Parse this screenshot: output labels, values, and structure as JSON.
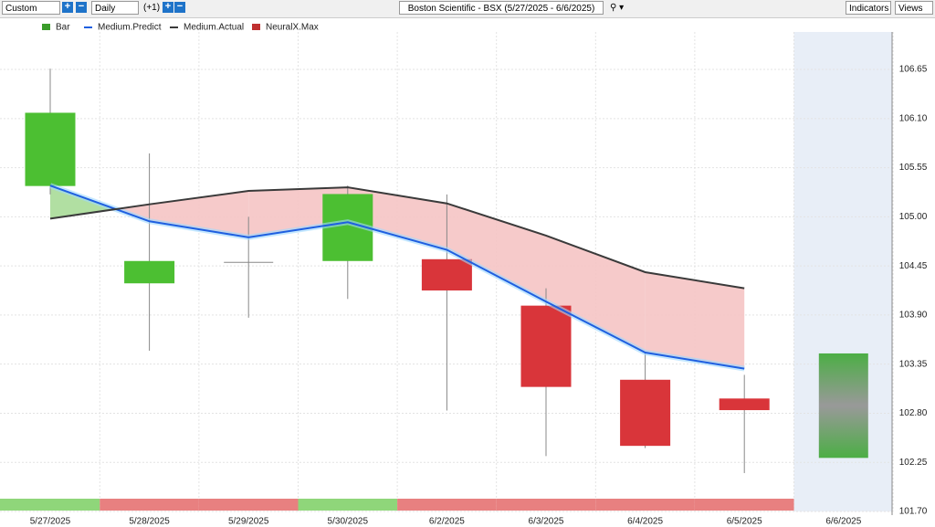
{
  "toolbar": {
    "range": "Custom",
    "interval": "Daily",
    "offset": "(+1)",
    "title": "Boston Scientific - BSX (5/27/2025 - 6/6/2025)",
    "indicators": "Indicators",
    "views": "Views"
  },
  "chart_data": {
    "type": "candlestick",
    "categories": [
      "5/27/2025",
      "5/28/2025",
      "5/29/2025",
      "5/30/2025",
      "6/2/2025",
      "6/3/2025",
      "6/4/2025",
      "6/5/2025",
      "6/6/2025"
    ],
    "open": [
      105.35,
      104.26,
      104.49,
      104.51,
      104.52,
      104.0,
      103.17,
      102.96,
      null
    ],
    "high": [
      106.66,
      105.71,
      105.0,
      105.35,
      105.25,
      104.2,
      103.49,
      103.23,
      null
    ],
    "low": [
      105.25,
      103.5,
      103.87,
      104.08,
      102.83,
      102.32,
      102.41,
      102.13,
      null
    ],
    "close": [
      106.16,
      104.5,
      104.49,
      105.25,
      104.18,
      103.1,
      102.44,
      102.84,
      null
    ],
    "up_color": "#4cbf32",
    "down_color": "#d9353a",
    "legend": [
      "Bar",
      "Medium.Predict",
      "Medium.Actual",
      "NeuralX.Max"
    ],
    "series": [
      {
        "name": "Medium.Predict",
        "color": "#1f5fe0",
        "values": [
          105.35,
          104.95,
          104.77,
          104.94,
          104.63,
          104.05,
          103.48,
          103.3,
          null
        ]
      },
      {
        "name": "Medium.Actual",
        "color": "#3a3a3a",
        "values": [
          104.98,
          105.14,
          105.29,
          105.33,
          105.15,
          104.79,
          104.38,
          104.2,
          null
        ]
      }
    ],
    "forecast": {
      "low": 102.3,
      "high": 103.47
    },
    "signal_colors": [
      "#8fd67a",
      "#e88080",
      "#e88080",
      "#8fd67a",
      "#e88080",
      "#e88080",
      "#e88080",
      "#e88080"
    ],
    "ylim": [
      101.7,
      107.07
    ],
    "yticks": [
      {
        "value": 101.7,
        "label": "101.70"
      },
      102.25,
      {
        "value": 102.8,
        "label": "102.80"
      },
      103.35,
      {
        "value": 103.9,
        "label": "103.90"
      },
      104.45,
      {
        "value": 105,
        "label": "105.00"
      },
      105.55,
      {
        "value": 106.1,
        "label": "106.10"
      },
      106.65
    ],
    "grid": true
  }
}
